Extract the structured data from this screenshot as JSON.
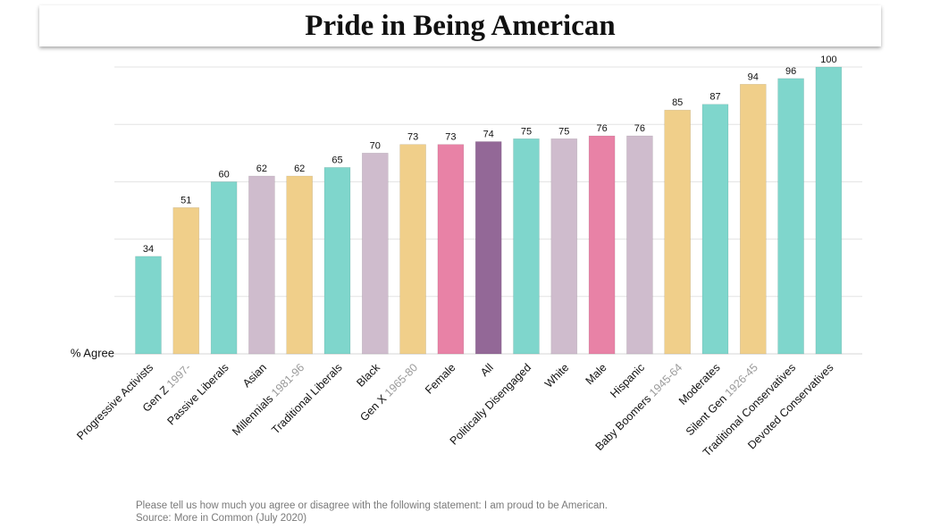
{
  "title": "Pride in Being American",
  "chart_data": {
    "type": "bar",
    "ylabel": "% Agree",
    "ylim": [
      0,
      100
    ],
    "grid": true,
    "categories": [
      {
        "label": "Progressive Activists",
        "sub": ""
      },
      {
        "label": "Gen Z",
        "sub": "1997-"
      },
      {
        "label": "Passive Liberals",
        "sub": ""
      },
      {
        "label": "Asian",
        "sub": ""
      },
      {
        "label": "Millennials",
        "sub": "1981-96"
      },
      {
        "label": "Traditional Liberals",
        "sub": ""
      },
      {
        "label": "Black",
        "sub": ""
      },
      {
        "label": "Gen X",
        "sub": "1965-80"
      },
      {
        "label": "Female",
        "sub": ""
      },
      {
        "label": "All",
        "sub": ""
      },
      {
        "label": "Politically Disengaged",
        "sub": ""
      },
      {
        "label": "White",
        "sub": ""
      },
      {
        "label": "Male",
        "sub": ""
      },
      {
        "label": "Hispanic",
        "sub": ""
      },
      {
        "label": "Baby Boomers",
        "sub": "1945-64"
      },
      {
        "label": "Moderates",
        "sub": ""
      },
      {
        "label": "Silent Gen",
        "sub": "1926-45"
      },
      {
        "label": "Traditional Conservatives",
        "sub": ""
      },
      {
        "label": "Devoted Conservatives",
        "sub": ""
      }
    ],
    "values": [
      34,
      51,
      60,
      62,
      62,
      65,
      70,
      73,
      73,
      74,
      75,
      75,
      76,
      76,
      85,
      87,
      94,
      96,
      100
    ],
    "colors": [
      "#7fd6cc",
      "#f0cf8a",
      "#7fd6cc",
      "#cfbccd",
      "#f0cf8a",
      "#7fd6cc",
      "#cfbccd",
      "#f0cf8a",
      "#e882a6",
      "#936897",
      "#7fd6cc",
      "#cfbccd",
      "#e882a6",
      "#cfbccd",
      "#f0cf8a",
      "#7fd6cc",
      "#f0cf8a",
      "#7fd6cc",
      "#7fd6cc"
    ]
  },
  "footnote": {
    "question": "Please tell us how much you agree or disagree with the following statement: I am proud to be American.",
    "source": "Source: More in Common (July 2020)"
  }
}
